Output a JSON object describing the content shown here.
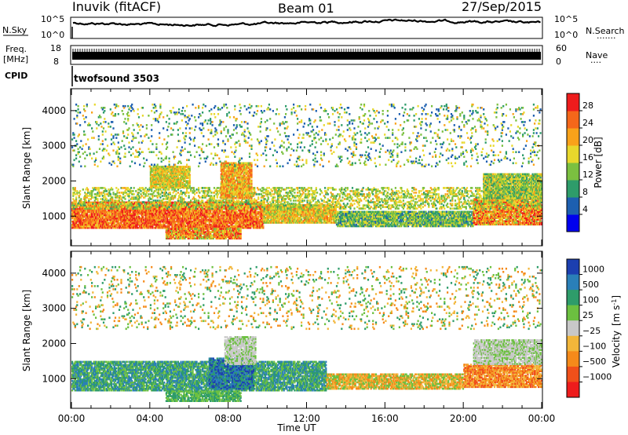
{
  "header": {
    "radar": "Inuvik (fitACF)",
    "beam": "Beam 01",
    "date": "27/Sep/2015"
  },
  "noise_panel": {
    "left_label": "N.Sky",
    "left_top": "10^5",
    "left_bottom": "10^0",
    "right_top": "10^5",
    "right_bottom": "10^0",
    "right_label": "N.Search",
    "right_dots": "......."
  },
  "freq_panel": {
    "left_label_1": "Freq.",
    "left_label_2": "[MHz]",
    "left_top": "18",
    "left_bottom": "8",
    "right_top": "60",
    "right_bottom": "0",
    "right_label": "Nave",
    "right_dots": "...."
  },
  "cpid": {
    "label": "CPID",
    "value": "twofsound 3503"
  },
  "chart_data": [
    {
      "type": "heatmap",
      "title": "",
      "ylabel": "Slant Range [km]",
      "xlabel": "",
      "xlim": [
        0,
        24
      ],
      "ylim": [
        180,
        4600
      ],
      "yticks": [
        "1000",
        "2000",
        "3000",
        "4000"
      ],
      "colorbar": {
        "label": "Power [dB]",
        "ticks": [
          "4",
          "8",
          "12",
          "16",
          "20",
          "24",
          "28"
        ],
        "range": [
          0,
          30
        ],
        "colors": [
          "#0000ee",
          "#1d5fb0",
          "#2e9c6a",
          "#7bc040",
          "#e8d82c",
          "#f9a21a",
          "#f5671a",
          "#ee1c1c"
        ]
      },
      "echo_regions": [
        {
          "t0": 0.0,
          "t1": 9.8,
          "r0": 650,
          "r1": 1400,
          "min": 18,
          "max": 30
        },
        {
          "t0": 9.8,
          "t1": 13.5,
          "r0": 800,
          "r1": 1300,
          "min": 12,
          "max": 24
        },
        {
          "t0": 13.5,
          "t1": 20.5,
          "r0": 700,
          "r1": 1150,
          "min": 6,
          "max": 18
        },
        {
          "t0": 20.5,
          "t1": 24.0,
          "r0": 750,
          "r1": 1500,
          "min": 14,
          "max": 30
        },
        {
          "t0": 0.0,
          "t1": 24.0,
          "r0": 1200,
          "r1": 1800,
          "min": 10,
          "max": 20
        },
        {
          "t0": 4.8,
          "t1": 8.6,
          "r0": 350,
          "r1": 650,
          "min": 12,
          "max": 30
        },
        {
          "t0": 7.6,
          "t1": 9.2,
          "r0": 1500,
          "r1": 2500,
          "min": 14,
          "max": 26
        },
        {
          "t0": 21.0,
          "t1": 24.0,
          "r0": 1500,
          "r1": 2200,
          "min": 8,
          "max": 20
        },
        {
          "t0": 4.0,
          "t1": 6.0,
          "r0": 1800,
          "r1": 2400,
          "min": 12,
          "max": 22
        },
        {
          "t0": 0.0,
          "t1": 24.0,
          "r0": 2400,
          "r1": 4200,
          "min": 4,
          "max": 20
        }
      ]
    },
    {
      "type": "heatmap",
      "title": "",
      "ylabel": "Slant Range [km]",
      "xlabel": "Time UT",
      "xlim": [
        0,
        24
      ],
      "ylim": [
        180,
        4600
      ],
      "xticks": [
        "00:00",
        "04:00",
        "08:00",
        "12:00",
        "16:00",
        "20:00",
        "00:00"
      ],
      "yticks": [
        "1000",
        "2000",
        "3000",
        "4000"
      ],
      "colorbar": {
        "label": "Velocity [m s^-1]",
        "ticks": [
          "1000",
          "500",
          "100",
          "25",
          "−25",
          "−100",
          "−500",
          "−1000"
        ],
        "colors": [
          "#1c3fb0",
          "#2a7fb8",
          "#2e9c6a",
          "#6cc040",
          "#c8c8c8",
          "#f2b63a",
          "#f58a1a",
          "#f0501a",
          "#ee1c1c"
        ]
      },
      "echo_regions": [
        {
          "t0": 0.0,
          "t1": 13.0,
          "r0": 650,
          "r1": 1500,
          "classes": [
            1,
            2,
            3
          ]
        },
        {
          "t0": 7.0,
          "t1": 9.3,
          "r0": 700,
          "r1": 1600,
          "classes": [
            0,
            1,
            2
          ]
        },
        {
          "t0": 13.0,
          "t1": 20.0,
          "r0": 700,
          "r1": 1150,
          "classes": [
            5,
            6,
            3
          ]
        },
        {
          "t0": 20.0,
          "t1": 24.0,
          "r0": 750,
          "r1": 1400,
          "classes": [
            5,
            6,
            7
          ]
        },
        {
          "t0": 7.8,
          "t1": 9.4,
          "r0": 1400,
          "r1": 2200,
          "classes": [
            4,
            4,
            3
          ]
        },
        {
          "t0": 20.5,
          "t1": 24.0,
          "r0": 1400,
          "r1": 2100,
          "classes": [
            4,
            4,
            3
          ]
        },
        {
          "t0": 4.8,
          "t1": 8.6,
          "r0": 350,
          "r1": 650,
          "classes": [
            2,
            3
          ]
        },
        {
          "t0": 0.0,
          "t1": 24.0,
          "r0": 2400,
          "r1": 4200,
          "classes": [
            2,
            3,
            5,
            6
          ]
        }
      ]
    }
  ]
}
